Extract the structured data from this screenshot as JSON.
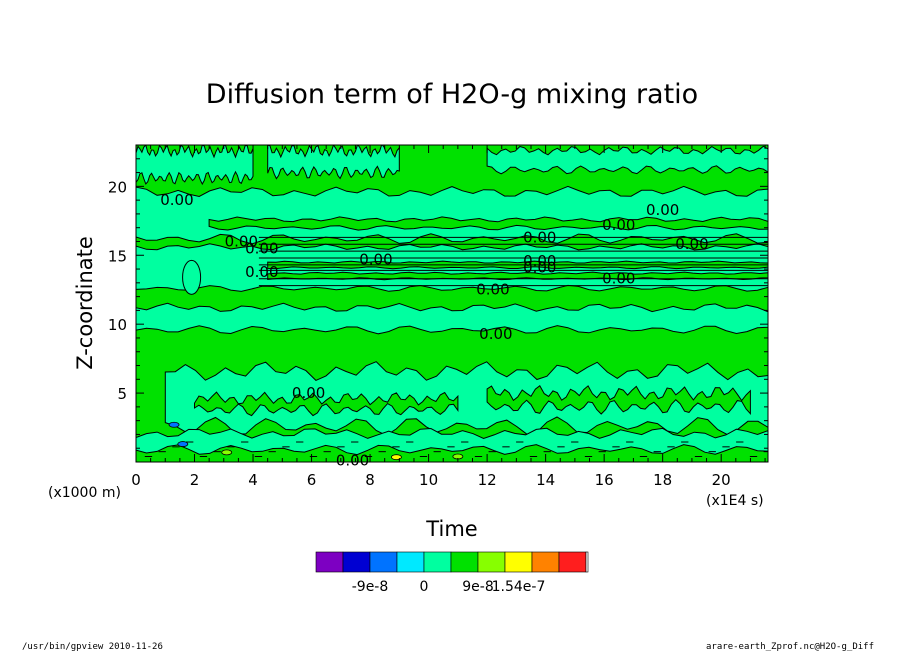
{
  "chart_data": {
    "type": "heatmap",
    "title": "Diffusion term of H2O-g mixing ratio",
    "xlabel": "Time",
    "ylabel": "Z-coordinate",
    "x_unit": "(x1E4 s)",
    "y_unit": "(x1000 m)",
    "xlim": [
      0,
      21.6
    ],
    "ylim": [
      0,
      23
    ],
    "xticks": [
      "0",
      "2",
      "4",
      "6",
      "8",
      "10",
      "12",
      "14",
      "16",
      "18",
      "20"
    ],
    "yticks": [
      "5",
      "10",
      "15",
      "20"
    ],
    "xtick_values": [
      0,
      2,
      4,
      6,
      8,
      10,
      12,
      14,
      16,
      18,
      20
    ],
    "ytick_values": [
      5,
      10,
      15,
      20
    ],
    "contour_labels": [
      {
        "text": "0.00",
        "x": 1.4,
        "y": 19.0
      },
      {
        "text": "0.00",
        "x": 18.0,
        "y": 18.3
      },
      {
        "text": "0.00",
        "x": 16.5,
        "y": 17.2
      },
      {
        "text": "0.00",
        "x": 3.6,
        "y": 16.0
      },
      {
        "text": "0.00",
        "x": 4.3,
        "y": 15.5
      },
      {
        "text": "0.00",
        "x": 13.8,
        "y": 16.3
      },
      {
        "text": "0.00",
        "x": 19.0,
        "y": 15.8
      },
      {
        "text": "0.00",
        "x": 8.2,
        "y": 14.7
      },
      {
        "text": "0.00",
        "x": 13.8,
        "y": 14.6
      },
      {
        "text": "0.00",
        "x": 13.8,
        "y": 14.1
      },
      {
        "text": "0.00",
        "x": 4.3,
        "y": 13.8
      },
      {
        "text": "0.00",
        "x": 16.5,
        "y": 13.3
      },
      {
        "text": "0.00",
        "x": 12.2,
        "y": 12.5
      },
      {
        "text": "0.00",
        "x": 12.3,
        "y": 9.3
      },
      {
        "text": "0.00",
        "x": 5.9,
        "y": 5.0
      },
      {
        "text": "0.00",
        "x": 7.4,
        "y": 0.1
      }
    ],
    "colorbar": {
      "colors": [
        "#7d00c2",
        "#0000d2",
        "#0073ff",
        "#00e9ff",
        "#00ffa0",
        "#00e100",
        "#87ff00",
        "#ffff00",
        "#ff8200",
        "#ff1e1e"
      ],
      "tick_labels": [
        "-9e-8",
        "0",
        "9e-8",
        "1.54e-7"
      ],
      "tick_positions": [
        2,
        4,
        6,
        7.5
      ]
    }
  },
  "footer": {
    "left": "/usr/bin/gpview   2010-11-26",
    "right": "arare-earth_Zprof.nc@H2O-g_Diff"
  }
}
